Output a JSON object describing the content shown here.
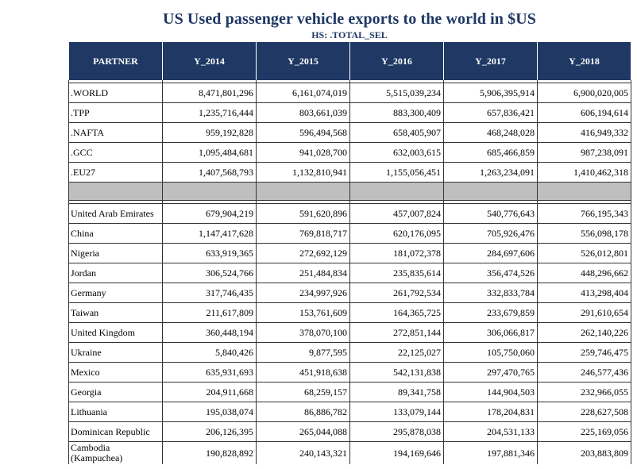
{
  "title": "US Used passenger vehicle exports to the world in $US",
  "subtitle": "HS: .TOTAL_SEL",
  "headers": [
    "PARTNER",
    "Y_2014",
    "Y_2015",
    "Y_2016",
    "Y_2017",
    "Y_2018"
  ],
  "groups": [
    [
      ".WORLD",
      "8,471,801,296",
      "6,161,074,019",
      "5,515,039,234",
      "5,906,395,914",
      "6,900,020,005"
    ],
    [
      ".TPP",
      "1,235,716,444",
      "803,661,039",
      "883,300,409",
      "657,836,421",
      "606,194,614"
    ],
    [
      ".NAFTA",
      "959,192,828",
      "596,494,568",
      "658,405,907",
      "468,248,028",
      "416,949,332"
    ],
    [
      ".GCC",
      "1,095,484,681",
      "941,028,700",
      "632,003,615",
      "685,466,859",
      "987,238,091"
    ],
    [
      ".EU27",
      "1,407,568,793",
      "1,132,810,941",
      "1,155,056,451",
      "1,263,234,091",
      "1,410,462,318"
    ]
  ],
  "countries": [
    [
      "United Arab Emirates",
      "679,904,219",
      "591,620,896",
      "457,007,824",
      "540,776,643",
      "766,195,343"
    ],
    [
      "China",
      "1,147,417,628",
      "769,818,717",
      "620,176,095",
      "705,926,476",
      "556,098,178"
    ],
    [
      "Nigeria",
      "633,919,365",
      "272,692,129",
      "181,072,378",
      "284,697,606",
      "526,012,801"
    ],
    [
      "Jordan",
      "306,524,766",
      "251,484,834",
      "235,835,614",
      "356,474,526",
      "448,296,662"
    ],
    [
      "Germany",
      "317,746,435",
      "234,997,926",
      "261,792,534",
      "332,833,784",
      "413,298,404"
    ],
    [
      "Taiwan",
      "211,617,809",
      "153,761,609",
      "164,365,725",
      "233,679,859",
      "291,610,654"
    ],
    [
      "United Kingdom",
      "360,448,194",
      "378,070,100",
      "272,851,144",
      "306,066,817",
      "262,140,226"
    ],
    [
      "Ukraine",
      "5,840,426",
      "9,877,595",
      "22,125,027",
      "105,750,060",
      "259,746,475"
    ],
    [
      "Mexico",
      "635,931,693",
      "451,918,638",
      "542,131,838",
      "297,470,765",
      "246,577,436"
    ],
    [
      "Georgia",
      "204,911,668",
      "68,259,157",
      "89,341,758",
      "144,904,503",
      "232,966,055"
    ],
    [
      "Lithuania",
      "195,038,074",
      "86,886,782",
      "133,079,144",
      "178,204,831",
      "228,627,508"
    ],
    [
      "Dominican Republic",
      "206,126,395",
      "265,044,088",
      "295,878,038",
      "204,531,133",
      "225,169,056"
    ],
    [
      "Cambodia (Kampuchea)",
      "190,828,892",
      "240,143,321",
      "194,169,646",
      "197,881,346",
      "203,883,809"
    ]
  ]
}
